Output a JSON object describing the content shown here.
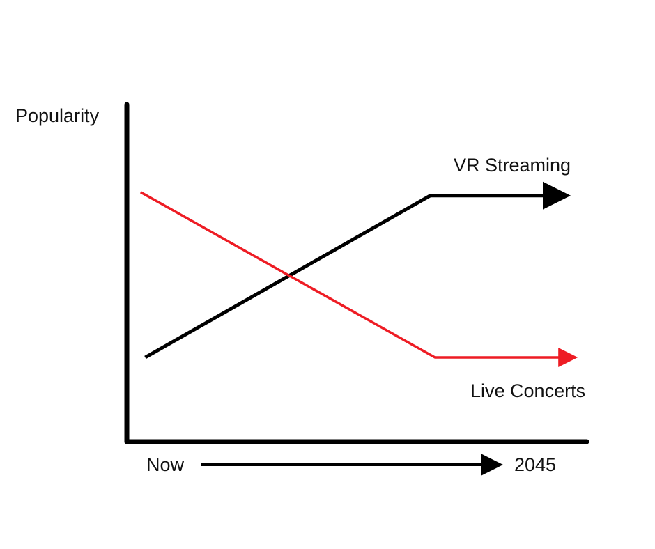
{
  "chart_data": {
    "type": "line",
    "title": "",
    "ylabel": "Popularity",
    "x_axis": {
      "start_label": "Now",
      "end_label": "2045",
      "arrow": true
    },
    "ylim": [
      0,
      100
    ],
    "xlim": [
      0,
      100
    ],
    "grid": false,
    "series": [
      {
        "name": "VR Streaming",
        "color": "#000000",
        "arrow_end": true,
        "points": [
          {
            "x": 4,
            "y": 25
          },
          {
            "x": 66,
            "y": 73
          },
          {
            "x": 95,
            "y": 73
          }
        ]
      },
      {
        "name": "Live Concerts",
        "color": "#ee1c24",
        "arrow_end": true,
        "points": [
          {
            "x": 3,
            "y": 74
          },
          {
            "x": 67,
            "y": 25
          },
          {
            "x": 97,
            "y": 25
          }
        ]
      }
    ]
  }
}
